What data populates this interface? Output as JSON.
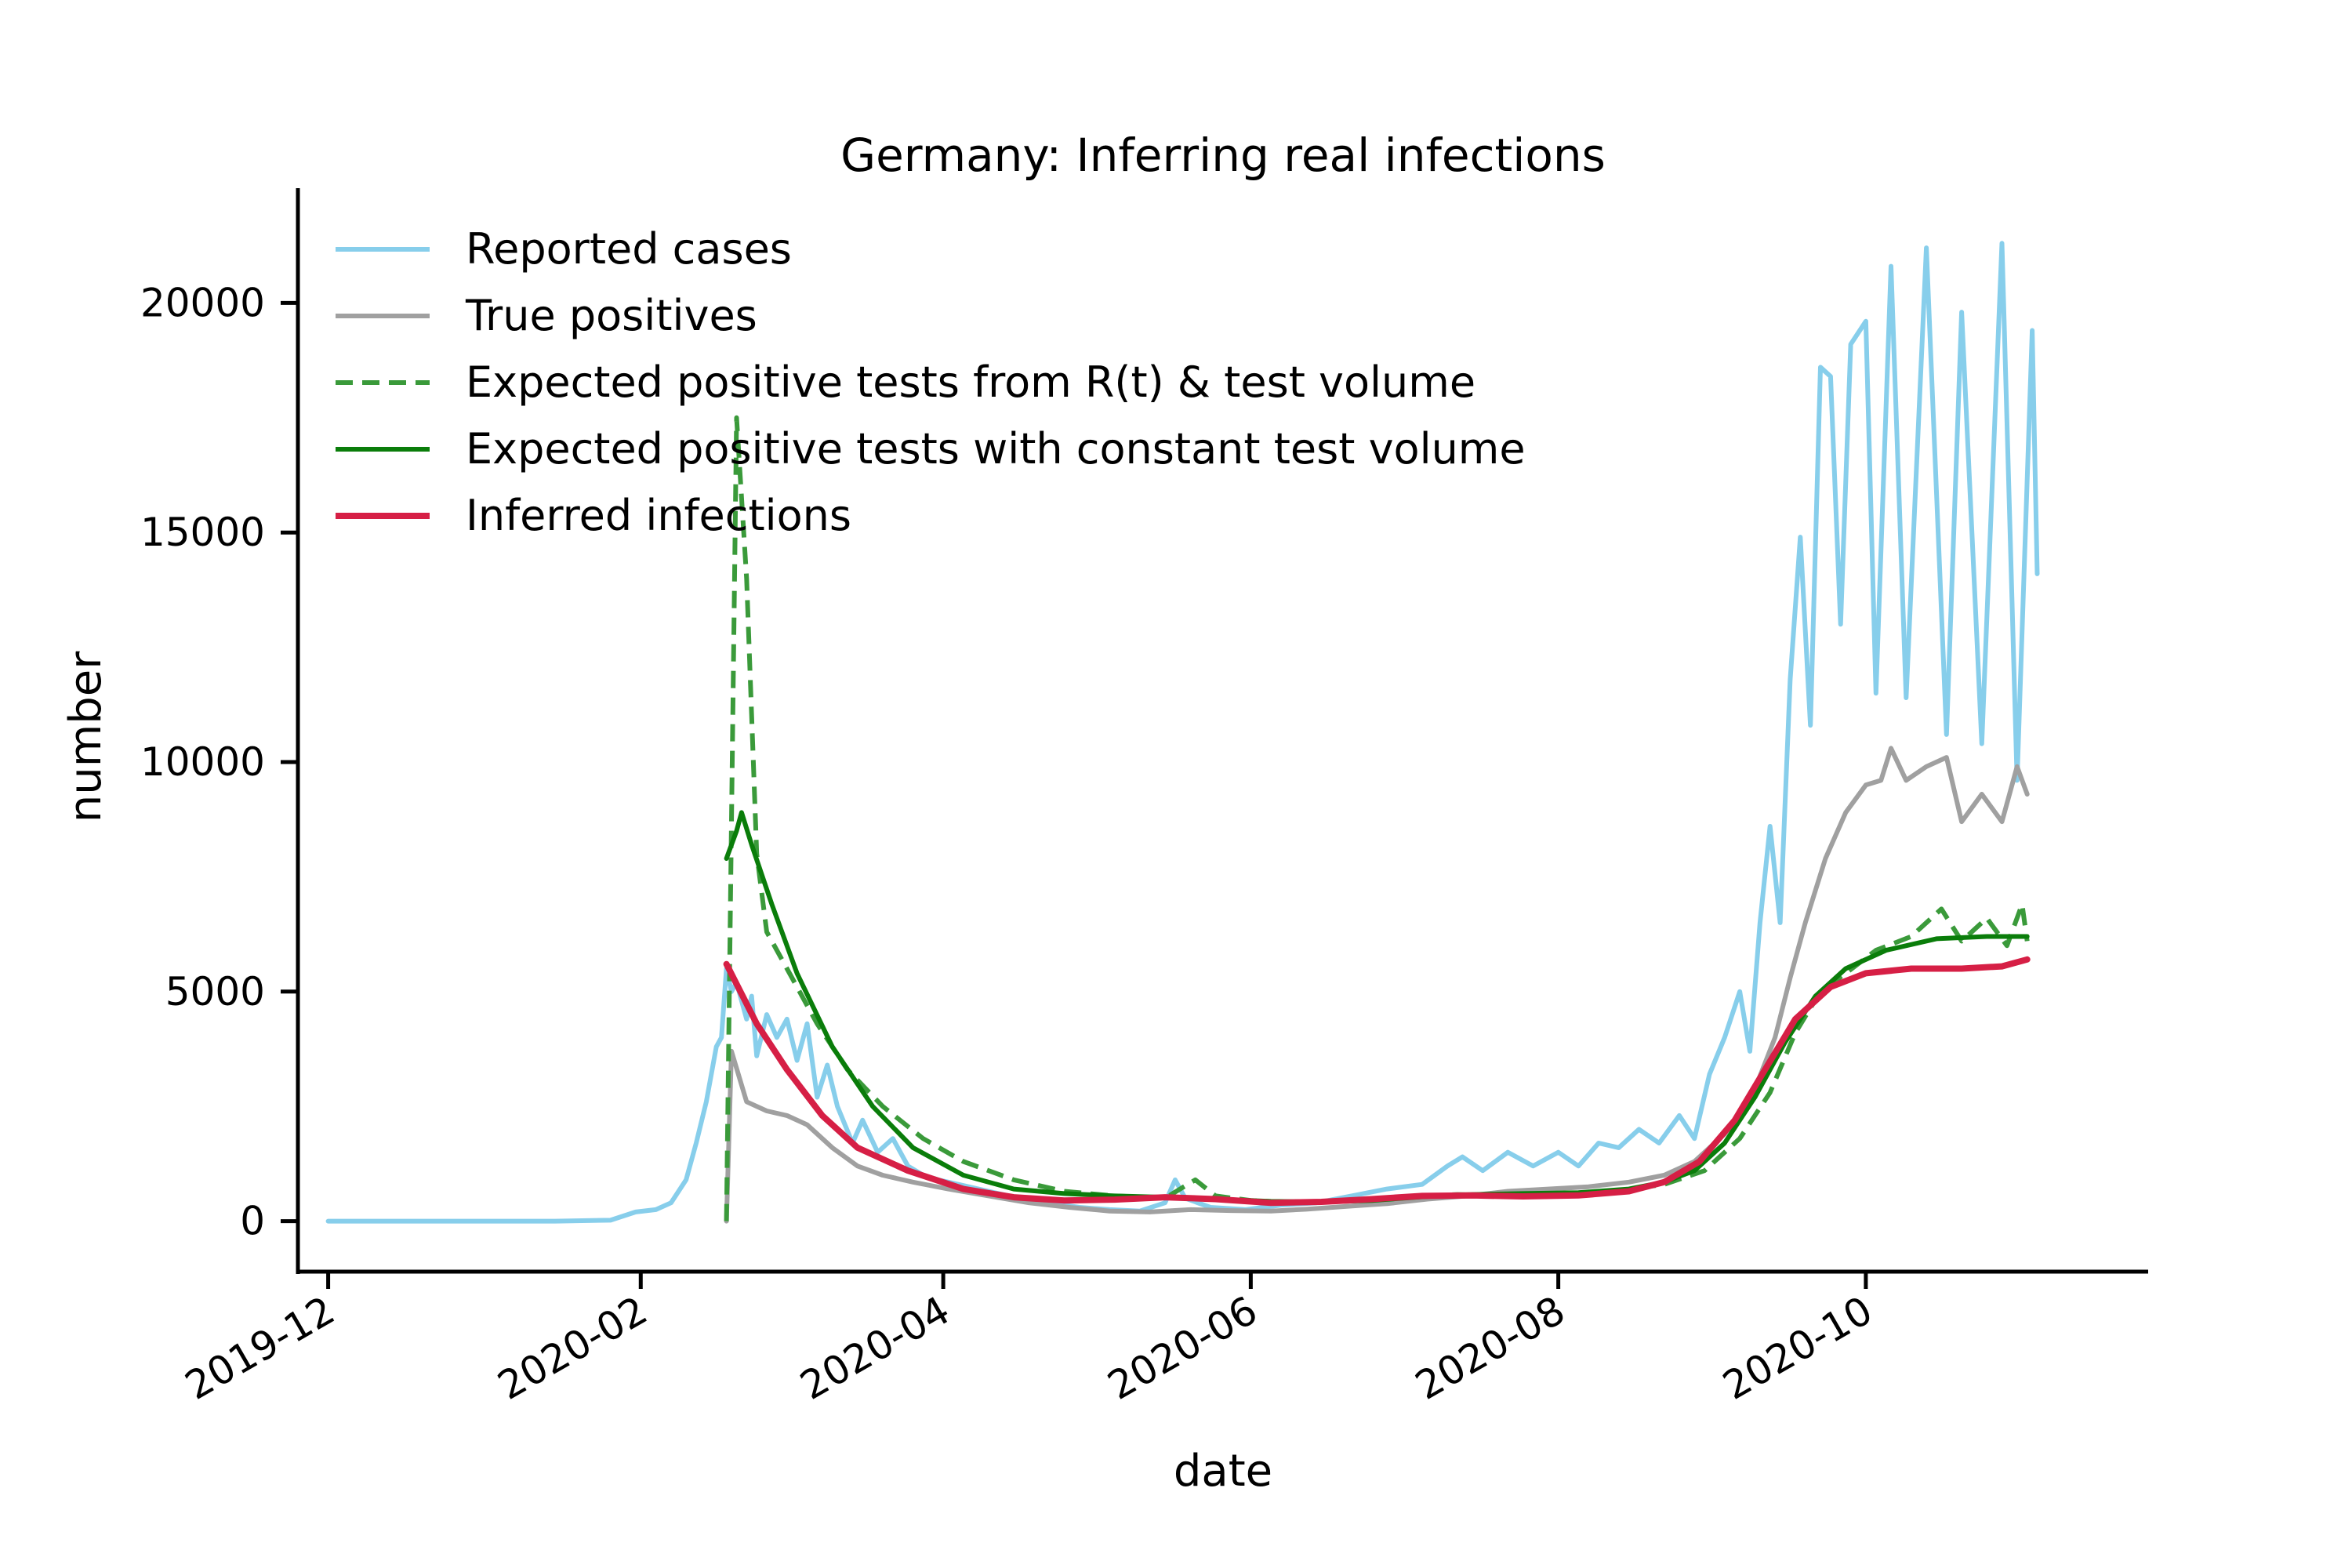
{
  "chart_data": {
    "type": "line",
    "title": "Germany: Inferring real infections",
    "xlabel": "date",
    "ylabel": "number",
    "x_range": [
      "2019-11-25",
      "2020-11-26"
    ],
    "ylim": [
      -1100,
      22500
    ],
    "x_ticks": [
      "2019-12-01",
      "2020-02-01",
      "2020-04-01",
      "2020-06-01",
      "2020-08-01",
      "2020-10-01"
    ],
    "x_tick_labels": [
      "2019-12",
      "2020-02",
      "2020-04",
      "2020-06",
      "2020-08",
      "2020-10"
    ],
    "y_ticks": [
      0,
      5000,
      10000,
      15000,
      20000
    ],
    "y_tick_labels": [
      "0",
      "5000",
      "10000",
      "15000",
      "20000"
    ],
    "grid": false,
    "legend_position": "top-left",
    "series": [
      {
        "name": "Reported cases",
        "color": "#87ceeb",
        "style": "solid",
        "points": [
          [
            "2019-12-01",
            0
          ],
          [
            "2019-12-15",
            0
          ],
          [
            "2020-01-01",
            0
          ],
          [
            "2020-01-15",
            0
          ],
          [
            "2020-01-26",
            20
          ],
          [
            "2020-01-31",
            200
          ],
          [
            "2020-02-04",
            250
          ],
          [
            "2020-02-07",
            400
          ],
          [
            "2020-02-10",
            900
          ],
          [
            "2020-02-12",
            1700
          ],
          [
            "2020-02-14",
            2600
          ],
          [
            "2020-02-16",
            3800
          ],
          [
            "2020-02-17",
            4000
          ],
          [
            "2020-02-18",
            5500
          ],
          [
            "2020-02-19",
            5000
          ],
          [
            "2020-02-20",
            5200
          ],
          [
            "2020-02-22",
            4400
          ],
          [
            "2020-02-23",
            4900
          ],
          [
            "2020-02-24",
            3600
          ],
          [
            "2020-02-26",
            4500
          ],
          [
            "2020-02-28",
            4000
          ],
          [
            "2020-03-01",
            4400
          ],
          [
            "2020-03-03",
            3500
          ],
          [
            "2020-03-05",
            4300
          ],
          [
            "2020-03-07",
            2700
          ],
          [
            "2020-03-09",
            3400
          ],
          [
            "2020-03-11",
            2500
          ],
          [
            "2020-03-14",
            1700
          ],
          [
            "2020-03-16",
            2200
          ],
          [
            "2020-03-19",
            1500
          ],
          [
            "2020-03-22",
            1800
          ],
          [
            "2020-03-25",
            1200
          ],
          [
            "2020-03-28",
            1000
          ],
          [
            "2020-03-31",
            900
          ],
          [
            "2020-04-04",
            800
          ],
          [
            "2020-04-10",
            650
          ],
          [
            "2020-04-16",
            500
          ],
          [
            "2020-04-22",
            400
          ],
          [
            "2020-04-28",
            300
          ],
          [
            "2020-05-04",
            250
          ],
          [
            "2020-05-10",
            220
          ],
          [
            "2020-05-15",
            400
          ],
          [
            "2020-05-17",
            900
          ],
          [
            "2020-05-19",
            500
          ],
          [
            "2020-05-24",
            300
          ],
          [
            "2020-05-31",
            250
          ],
          [
            "2020-06-07",
            350
          ],
          [
            "2020-06-14",
            400
          ],
          [
            "2020-06-21",
            550
          ],
          [
            "2020-06-28",
            700
          ],
          [
            "2020-07-05",
            800
          ],
          [
            "2020-07-10",
            1200
          ],
          [
            "2020-07-13",
            1400
          ],
          [
            "2020-07-17",
            1100
          ],
          [
            "2020-07-22",
            1500
          ],
          [
            "2020-07-27",
            1200
          ],
          [
            "2020-08-01",
            1500
          ],
          [
            "2020-08-05",
            1200
          ],
          [
            "2020-08-09",
            1700
          ],
          [
            "2020-08-13",
            1600
          ],
          [
            "2020-08-17",
            2000
          ],
          [
            "2020-08-21",
            1700
          ],
          [
            "2020-08-25",
            2300
          ],
          [
            "2020-08-28",
            1800
          ],
          [
            "2020-08-31",
            3200
          ],
          [
            "2020-09-03",
            4000
          ],
          [
            "2020-09-06",
            5000
          ],
          [
            "2020-09-08",
            3700
          ],
          [
            "2020-09-10",
            6500
          ],
          [
            "2020-09-12",
            8600
          ],
          [
            "2020-09-14",
            6500
          ],
          [
            "2020-09-16",
            11800
          ],
          [
            "2020-09-18",
            14900
          ],
          [
            "2020-09-20",
            10800
          ],
          [
            "2020-09-22",
            18600
          ],
          [
            "2020-09-24",
            18400
          ],
          [
            "2020-09-26",
            13000
          ],
          [
            "2020-09-28",
            19100
          ],
          [
            "2020-10-01",
            19600
          ],
          [
            "2020-10-03",
            11500
          ],
          [
            "2020-10-06",
            20800
          ],
          [
            "2020-10-09",
            11400
          ],
          [
            "2020-10-13",
            21200
          ],
          [
            "2020-10-17",
            10600
          ],
          [
            "2020-10-20",
            19800
          ],
          [
            "2020-10-24",
            10400
          ],
          [
            "2020-10-28",
            21300
          ],
          [
            "2020-10-31",
            9600
          ],
          [
            "2020-11-03",
            19400
          ],
          [
            "2020-11-04",
            14100
          ]
        ]
      },
      {
        "name": "True positives",
        "color": "#a0a0a0",
        "style": "solid",
        "points": [
          [
            "2020-02-18",
            0
          ],
          [
            "2020-02-19",
            3700
          ],
          [
            "2020-02-22",
            2600
          ],
          [
            "2020-02-26",
            2400
          ],
          [
            "2020-03-01",
            2300
          ],
          [
            "2020-03-05",
            2100
          ],
          [
            "2020-03-10",
            1600
          ],
          [
            "2020-03-15",
            1200
          ],
          [
            "2020-03-20",
            1000
          ],
          [
            "2020-03-26",
            850
          ],
          [
            "2020-04-02",
            700
          ],
          [
            "2020-04-10",
            550
          ],
          [
            "2020-04-18",
            400
          ],
          [
            "2020-04-26",
            300
          ],
          [
            "2020-05-04",
            220
          ],
          [
            "2020-05-12",
            200
          ],
          [
            "2020-05-20",
            250
          ],
          [
            "2020-05-28",
            230
          ],
          [
            "2020-06-05",
            220
          ],
          [
            "2020-06-12",
            260
          ],
          [
            "2020-06-20",
            320
          ],
          [
            "2020-06-28",
            380
          ],
          [
            "2020-07-06",
            480
          ],
          [
            "2020-07-14",
            550
          ],
          [
            "2020-07-22",
            650
          ],
          [
            "2020-07-30",
            700
          ],
          [
            "2020-08-07",
            750
          ],
          [
            "2020-08-15",
            850
          ],
          [
            "2020-08-22",
            1000
          ],
          [
            "2020-08-28",
            1300
          ],
          [
            "2020-09-03",
            1900
          ],
          [
            "2020-09-08",
            2600
          ],
          [
            "2020-09-13",
            4000
          ],
          [
            "2020-09-16",
            5300
          ],
          [
            "2020-09-19",
            6500
          ],
          [
            "2020-09-23",
            7900
          ],
          [
            "2020-09-27",
            8900
          ],
          [
            "2020-10-01",
            9500
          ],
          [
            "2020-10-04",
            9600
          ],
          [
            "2020-10-06",
            10300
          ],
          [
            "2020-10-09",
            9600
          ],
          [
            "2020-10-13",
            9900
          ],
          [
            "2020-10-17",
            10100
          ],
          [
            "2020-10-20",
            8700
          ],
          [
            "2020-10-24",
            9300
          ],
          [
            "2020-10-28",
            8700
          ],
          [
            "2020-10-31",
            9900
          ],
          [
            "2020-11-02",
            9300
          ]
        ]
      },
      {
        "name": "Expected positive tests from R(t) & test volume",
        "color": "#3a9a3a",
        "style": "dashed",
        "points": [
          [
            "2020-02-18",
            0
          ],
          [
            "2020-02-20",
            17500
          ],
          [
            "2020-02-22",
            14000
          ],
          [
            "2020-02-24",
            8000
          ],
          [
            "2020-02-26",
            6300
          ],
          [
            "2020-03-01",
            5500
          ],
          [
            "2020-03-07",
            4300
          ],
          [
            "2020-03-13",
            3300
          ],
          [
            "2020-03-20",
            2500
          ],
          [
            "2020-03-28",
            1800
          ],
          [
            "2020-04-05",
            1300
          ],
          [
            "2020-04-15",
            900
          ],
          [
            "2020-04-25",
            650
          ],
          [
            "2020-05-05",
            550
          ],
          [
            "2020-05-15",
            500
          ],
          [
            "2020-05-21",
            900
          ],
          [
            "2020-05-25",
            550
          ],
          [
            "2020-06-01",
            450
          ],
          [
            "2020-06-10",
            400
          ],
          [
            "2020-06-20",
            450
          ],
          [
            "2020-07-01",
            520
          ],
          [
            "2020-07-12",
            580
          ],
          [
            "2020-07-22",
            560
          ],
          [
            "2020-08-01",
            580
          ],
          [
            "2020-08-12",
            650
          ],
          [
            "2020-08-22",
            800
          ],
          [
            "2020-08-30",
            1100
          ],
          [
            "2020-09-06",
            1800
          ],
          [
            "2020-09-12",
            2800
          ],
          [
            "2020-09-17",
            4100
          ],
          [
            "2020-09-22",
            5000
          ],
          [
            "2020-09-27",
            5400
          ],
          [
            "2020-10-03",
            5900
          ],
          [
            "2020-10-10",
            6200
          ],
          [
            "2020-10-16",
            6800
          ],
          [
            "2020-10-20",
            6100
          ],
          [
            "2020-10-25",
            6600
          ],
          [
            "2020-10-29",
            6000
          ],
          [
            "2020-11-01",
            6900
          ],
          [
            "2020-11-02",
            6100
          ]
        ]
      },
      {
        "name": "Expected positive tests with constant test volume",
        "color": "#0a7d0a",
        "style": "solid",
        "points": [
          [
            "2020-02-18",
            7900
          ],
          [
            "2020-02-20",
            8500
          ],
          [
            "2020-02-21",
            8900
          ],
          [
            "2020-02-23",
            8200
          ],
          [
            "2020-02-27",
            6900
          ],
          [
            "2020-03-03",
            5400
          ],
          [
            "2020-03-10",
            3800
          ],
          [
            "2020-03-18",
            2500
          ],
          [
            "2020-03-26",
            1600
          ],
          [
            "2020-04-05",
            1000
          ],
          [
            "2020-04-15",
            700
          ],
          [
            "2020-04-25",
            600
          ],
          [
            "2020-05-05",
            550
          ],
          [
            "2020-05-15",
            520
          ],
          [
            "2020-05-25",
            480
          ],
          [
            "2020-06-05",
            430
          ],
          [
            "2020-06-15",
            420
          ],
          [
            "2020-06-25",
            450
          ],
          [
            "2020-07-05",
            530
          ],
          [
            "2020-07-15",
            580
          ],
          [
            "2020-07-25",
            600
          ],
          [
            "2020-08-05",
            620
          ],
          [
            "2020-08-15",
            700
          ],
          [
            "2020-08-22",
            850
          ],
          [
            "2020-08-28",
            1100
          ],
          [
            "2020-09-03",
            1700
          ],
          [
            "2020-09-09",
            2700
          ],
          [
            "2020-09-15",
            3900
          ],
          [
            "2020-09-21",
            4900
          ],
          [
            "2020-09-27",
            5500
          ],
          [
            "2020-10-05",
            5900
          ],
          [
            "2020-10-15",
            6150
          ],
          [
            "2020-10-25",
            6200
          ],
          [
            "2020-11-02",
            6200
          ]
        ]
      },
      {
        "name": "Inferred infections",
        "color": "#d61f45",
        "style": "solid",
        "points": [
          [
            "2020-02-18",
            5600
          ],
          [
            "2020-02-24",
            4300
          ],
          [
            "2020-03-01",
            3300
          ],
          [
            "2020-03-08",
            2300
          ],
          [
            "2020-03-15",
            1600
          ],
          [
            "2020-03-25",
            1100
          ],
          [
            "2020-04-05",
            700
          ],
          [
            "2020-04-15",
            520
          ],
          [
            "2020-04-25",
            450
          ],
          [
            "2020-05-05",
            470
          ],
          [
            "2020-05-15",
            520
          ],
          [
            "2020-05-25",
            480
          ],
          [
            "2020-06-05",
            400
          ],
          [
            "2020-06-15",
            420
          ],
          [
            "2020-06-25",
            480
          ],
          [
            "2020-07-05",
            550
          ],
          [
            "2020-07-15",
            560
          ],
          [
            "2020-07-25",
            540
          ],
          [
            "2020-08-05",
            560
          ],
          [
            "2020-08-15",
            650
          ],
          [
            "2020-08-22",
            850
          ],
          [
            "2020-08-29",
            1300
          ],
          [
            "2020-09-05",
            2200
          ],
          [
            "2020-09-11",
            3300
          ],
          [
            "2020-09-17",
            4400
          ],
          [
            "2020-09-24",
            5100
          ],
          [
            "2020-10-01",
            5400
          ],
          [
            "2020-10-10",
            5500
          ],
          [
            "2020-10-20",
            5500
          ],
          [
            "2020-10-28",
            5550
          ],
          [
            "2020-11-02",
            5700
          ]
        ]
      }
    ]
  }
}
